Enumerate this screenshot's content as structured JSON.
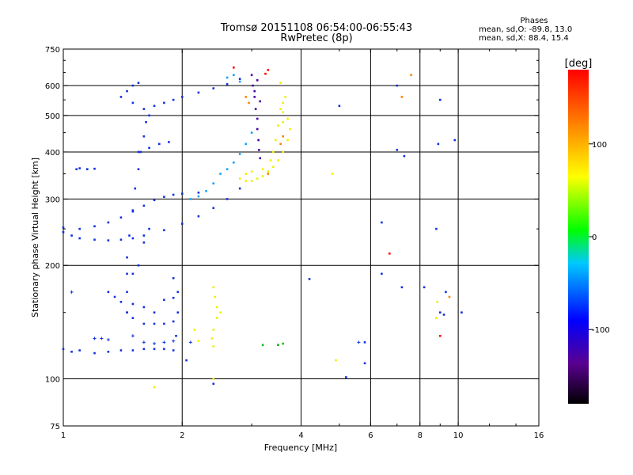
{
  "title_line1": "Tromsø 20151108 06:54:00-06:55:43",
  "title_line2": "RwPretec (8p)",
  "stats": {
    "header": "Phases",
    "line1": "mean, sd,O: -89.8, 13.0",
    "line2": "mean, sd,X:  88.4, 15.4"
  },
  "chart_data": {
    "type": "scatter",
    "xlabel": "Frequency [MHz]",
    "ylabel": "Stationary phase Virtual Height [km]",
    "x_scale": "log",
    "y_scale": "log",
    "xlim": [
      1,
      16
    ],
    "ylim": [
      75,
      750
    ],
    "x_ticks": [
      1,
      2,
      4,
      6,
      8,
      10,
      16
    ],
    "x_tick_labels": [
      "1",
      "2",
      "4",
      "6",
      "8",
      "10",
      "16"
    ],
    "y_ticks": [
      75,
      100,
      200,
      300,
      400,
      500,
      600,
      750
    ],
    "y_tick_labels": [
      "75",
      "100",
      "200",
      "300",
      "400",
      "500",
      "600",
      "750"
    ],
    "x_grid": [
      2,
      4,
      6,
      8,
      10
    ],
    "y_grid": [
      100,
      200,
      300,
      400,
      500,
      600
    ],
    "grid": true,
    "colorbar": {
      "label": "[deg]",
      "range": [
        -180,
        180
      ],
      "ticks": [
        100,
        0,
        -100
      ],
      "tick_labels": [
        "100",
        "0",
        "-100"
      ],
      "colors": [
        "#000000",
        "#5a0090",
        "#0000ff",
        "#00c8ff",
        "#00ff00",
        "#ffff00",
        "#ff8000",
        "#ff0000"
      ]
    },
    "series": [
      {
        "color": "#1030e0",
        "points": [
          [
            1.0,
            120
          ],
          [
            1.05,
            118
          ],
          [
            1.1,
            119
          ],
          [
            1.2,
            117
          ],
          [
            1.3,
            118
          ],
          [
            1.4,
            119
          ],
          [
            1.5,
            119
          ],
          [
            1.6,
            120
          ],
          [
            1.7,
            120
          ],
          [
            1.8,
            120
          ],
          [
            1.9,
            119
          ],
          [
            1.0,
            245
          ],
          [
            1.05,
            240
          ],
          [
            1.1,
            236
          ],
          [
            1.2,
            234
          ],
          [
            1.3,
            233
          ],
          [
            1.4,
            234
          ],
          [
            1.5,
            236
          ],
          [
            1.6,
            240
          ],
          [
            1.8,
            248
          ],
          [
            2.0,
            258
          ],
          [
            2.2,
            270
          ],
          [
            2.4,
            284
          ],
          [
            2.6,
            300
          ],
          [
            2.8,
            320
          ],
          [
            1.0,
            252
          ],
          [
            1.1,
            250
          ],
          [
            1.2,
            254
          ],
          [
            1.3,
            260
          ],
          [
            1.4,
            268
          ],
          [
            1.5,
            278
          ],
          [
            1.6,
            288
          ],
          [
            1.7,
            298
          ],
          [
            1.8,
            304
          ],
          [
            1.9,
            308
          ],
          [
            2.0,
            310
          ],
          [
            2.2,
            312
          ],
          [
            1.45,
            150
          ],
          [
            1.45,
            170
          ],
          [
            1.45,
            190
          ],
          [
            1.45,
            210
          ],
          [
            1.47,
            240
          ],
          [
            1.5,
            280
          ],
          [
            1.52,
            320
          ],
          [
            1.55,
            360
          ],
          [
            1.57,
            400
          ],
          [
            1.6,
            440
          ],
          [
            1.62,
            480
          ],
          [
            1.65,
            500
          ],
          [
            1.6,
            520
          ],
          [
            1.7,
            530
          ],
          [
            1.8,
            540
          ],
          [
            1.9,
            550
          ],
          [
            2.0,
            560
          ],
          [
            2.2,
            575
          ],
          [
            2.4,
            590
          ],
          [
            2.6,
            605
          ],
          [
            2.8,
            625
          ],
          [
            1.55,
            610
          ],
          [
            1.5,
            600
          ],
          [
            1.45,
            580
          ],
          [
            1.4,
            560
          ],
          [
            1.5,
            540
          ],
          [
            1.08,
            360
          ],
          [
            1.1,
            362
          ],
          [
            1.15,
            360
          ],
          [
            1.2,
            361
          ],
          [
            1.45,
            150
          ],
          [
            1.5,
            145
          ],
          [
            1.6,
            140
          ],
          [
            1.7,
            140
          ],
          [
            1.8,
            140
          ],
          [
            1.9,
            142
          ],
          [
            1.4,
            160
          ],
          [
            1.5,
            158
          ],
          [
            1.6,
            155
          ],
          [
            1.7,
            150
          ],
          [
            1.8,
            162
          ],
          [
            1.9,
            164
          ],
          [
            1.55,
            400
          ],
          [
            1.65,
            410
          ],
          [
            1.75,
            420
          ],
          [
            1.85,
            425
          ],
          [
            1.3,
            170
          ],
          [
            1.35,
            165
          ],
          [
            1.5,
            190
          ],
          [
            1.55,
            200
          ],
          [
            1.6,
            230
          ],
          [
            1.65,
            250
          ],
          [
            1.9,
            185
          ],
          [
            1.95,
            170
          ],
          [
            1.95,
            150
          ],
          [
            1.93,
            130
          ],
          [
            2.05,
            112
          ],
          [
            2.4,
            97
          ],
          [
            4.2,
            184
          ],
          [
            5.0,
            530
          ],
          [
            5.2,
            101
          ],
          [
            5.8,
            125
          ],
          [
            5.8,
            110
          ],
          [
            6.4,
            190
          ],
          [
            6.4,
            260
          ],
          [
            7.0,
            600
          ],
          [
            7.0,
            405
          ],
          [
            7.3,
            390
          ],
          [
            7.2,
            175
          ],
          [
            8.2,
            175
          ],
          [
            8.8,
            250
          ],
          [
            8.9,
            420
          ],
          [
            9.0,
            550
          ],
          [
            9.3,
            170
          ],
          [
            9.2,
            148
          ],
          [
            9.0,
            150
          ],
          [
            9.8,
            430
          ],
          [
            10.2,
            150
          ]
        ],
        "cross_points": [
          [
            1.05,
            170
          ],
          [
            1.2,
            128
          ],
          [
            1.25,
            128
          ],
          [
            1.3,
            127
          ],
          [
            1.5,
            130
          ],
          [
            1.6,
            125
          ],
          [
            1.7,
            124
          ],
          [
            1.8,
            125
          ],
          [
            1.9,
            126
          ],
          [
            2.1,
            125
          ],
          [
            5.6,
            125
          ]
        ]
      },
      {
        "color": "#4a00a0",
        "points": [
          [
            3.0,
            640
          ],
          [
            3.02,
            600
          ],
          [
            3.05,
            560
          ],
          [
            3.07,
            520
          ],
          [
            3.1,
            490
          ],
          [
            3.1,
            460
          ],
          [
            3.12,
            430
          ],
          [
            3.13,
            405
          ],
          [
            3.15,
            385
          ],
          [
            3.05,
            580
          ],
          [
            3.1,
            620
          ],
          [
            3.15,
            545
          ]
        ]
      },
      {
        "color": "#10a0ff",
        "points": [
          [
            2.6,
            360
          ],
          [
            2.7,
            375
          ],
          [
            2.8,
            395
          ],
          [
            2.9,
            420
          ],
          [
            3.0,
            450
          ],
          [
            2.5,
            350
          ],
          [
            2.3,
            315
          ],
          [
            2.2,
            305
          ],
          [
            2.1,
            300
          ],
          [
            2.4,
            330
          ],
          [
            2.7,
            640
          ],
          [
            2.6,
            630
          ],
          [
            2.8,
            615
          ]
        ]
      },
      {
        "color": "#f0f000",
        "points": [
          [
            2.8,
            340
          ],
          [
            2.9,
            335
          ],
          [
            3.0,
            335
          ],
          [
            3.1,
            340
          ],
          [
            3.2,
            345
          ],
          [
            3.3,
            355
          ],
          [
            3.4,
            365
          ],
          [
            3.5,
            380
          ],
          [
            3.6,
            400
          ],
          [
            3.7,
            430
          ],
          [
            3.75,
            460
          ],
          [
            3.7,
            490
          ],
          [
            3.6,
            510
          ],
          [
            3.5,
            470
          ],
          [
            3.45,
            430
          ],
          [
            3.4,
            400
          ],
          [
            3.35,
            380
          ],
          [
            3.2,
            360
          ],
          [
            3.0,
            355
          ],
          [
            2.9,
            350
          ],
          [
            3.6,
            480
          ],
          [
            3.55,
            520
          ],
          [
            3.6,
            540
          ],
          [
            3.65,
            560
          ],
          [
            3.55,
            610
          ],
          [
            2.4,
            175
          ],
          [
            2.42,
            165
          ],
          [
            2.45,
            155
          ],
          [
            2.45,
            145
          ],
          [
            2.4,
            135
          ],
          [
            2.38,
            128
          ],
          [
            2.4,
            122
          ],
          [
            2.5,
            150
          ],
          [
            2.15,
            135
          ],
          [
            2.2,
            126
          ],
          [
            1.7,
            95
          ],
          [
            2.4,
            100
          ],
          [
            4.8,
            350
          ],
          [
            4.9,
            112
          ],
          [
            8.8,
            145
          ],
          [
            8.85,
            160
          ]
        ]
      },
      {
        "color": "#ff8000",
        "points": [
          [
            2.9,
            560
          ],
          [
            2.95,
            540
          ],
          [
            3.3,
            350
          ],
          [
            3.55,
            420
          ],
          [
            3.6,
            440
          ],
          [
            7.6,
            640
          ],
          [
            7.2,
            560
          ],
          [
            9.5,
            165
          ]
        ]
      },
      {
        "color": "#ff0000",
        "points": [
          [
            2.7,
            670
          ],
          [
            3.25,
            645
          ],
          [
            3.3,
            660
          ],
          [
            3.5,
            123
          ],
          [
            6.7,
            215
          ],
          [
            9.0,
            130
          ]
        ]
      },
      {
        "color": "#10c020",
        "points": [
          [
            3.2,
            123
          ],
          [
            3.5,
            123
          ],
          [
            3.6,
            124
          ]
        ]
      }
    ]
  }
}
